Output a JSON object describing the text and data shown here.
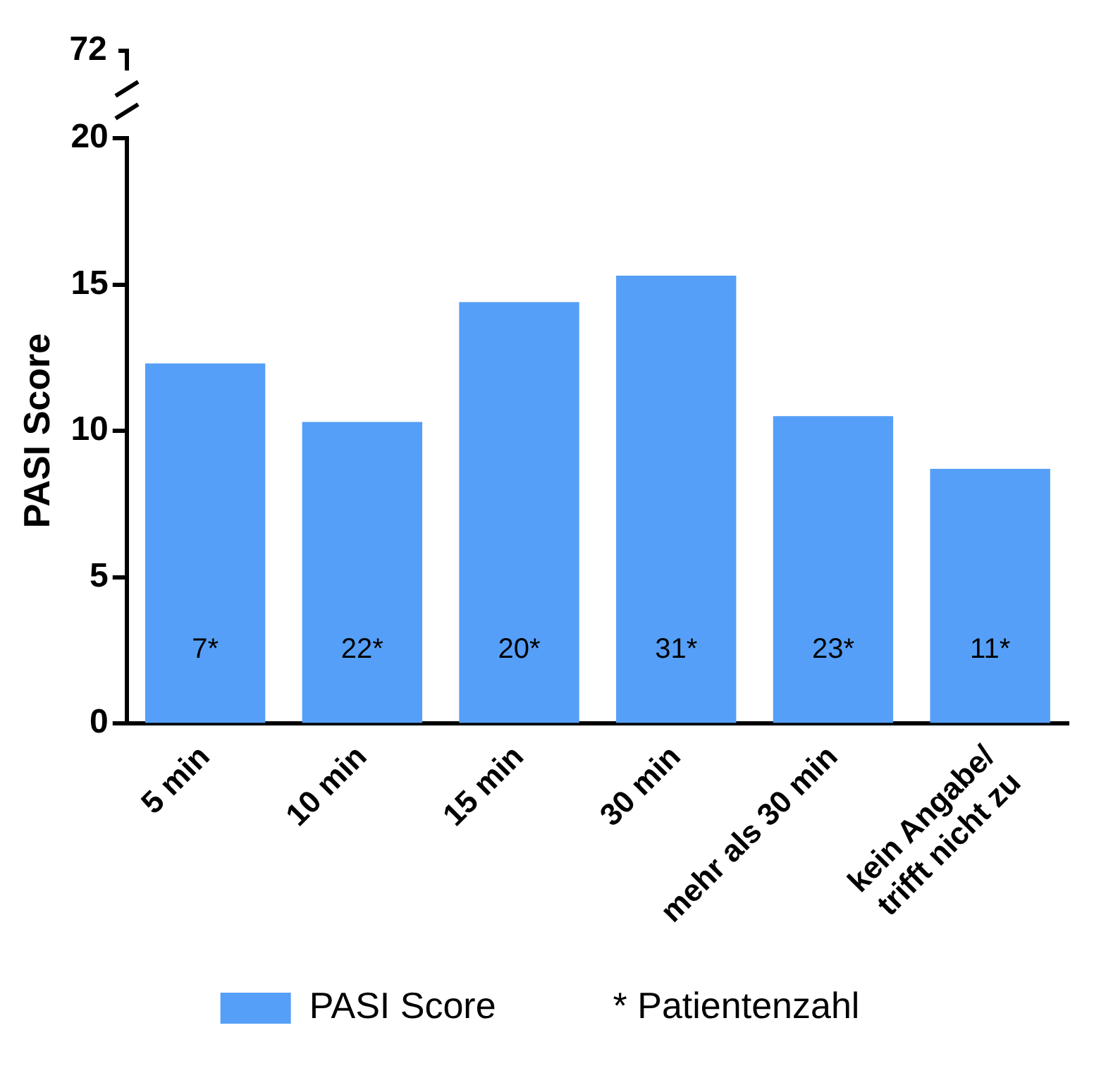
{
  "chart_data": {
    "type": "bar",
    "ylabel": "PASI Score",
    "categories": [
      "5 min",
      "10 min",
      "15 min",
      "30 min",
      "mehr als 30 min",
      "kein Angabe/\ntrifft nicht zu"
    ],
    "series": [
      {
        "name": "PASI Score",
        "color": "#559ff8",
        "values": [
          12.3,
          10.3,
          14.4,
          15.3,
          10.5,
          8.7
        ]
      }
    ],
    "value_labels": [
      "7*",
      "22*",
      "20*",
      "31*",
      "23*",
      "11*"
    ],
    "ylim": [
      0,
      20
    ],
    "yticks": [
      0,
      5,
      10,
      15,
      20
    ],
    "annotations": [
      "72",
      "* Patientenzahl"
    ],
    "grid": false,
    "legend": "bottom"
  }
}
